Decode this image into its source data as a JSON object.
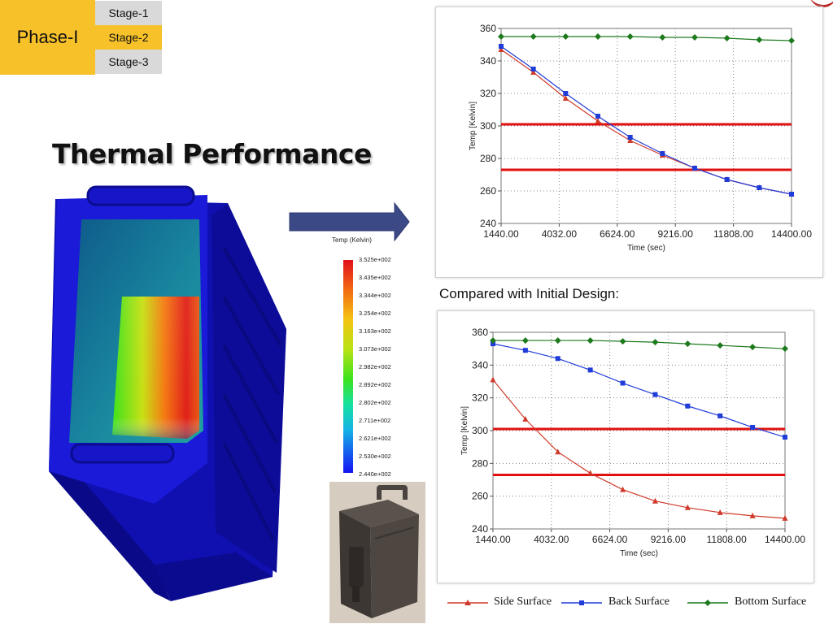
{
  "header": {
    "phase_label": "Phase-I",
    "stages": [
      "Stage-1",
      "Stage-2",
      "Stage-3"
    ],
    "active_stage": "Stage-2"
  },
  "title": "Thermal Performance",
  "colors": {
    "accent_yellow": "#f7c12a",
    "stage_gray": "#d9d9d9",
    "side_surface": "#d03a2a",
    "back_surface": "#1f3cd8",
    "bottom_surface": "#1d7a1d",
    "limit_lines": "#e01010",
    "model_blue": "#1a1ad8"
  },
  "compared_text": "Compared with Initial Design:",
  "colorbar": {
    "title": "Temp (Kelvin)",
    "ticks": [
      "3.525e+002",
      "3.435e+002",
      "3.344e+002",
      "3.254e+002",
      "3.163e+002",
      "3.073e+002",
      "2.982e+002",
      "2.892e+002",
      "2.802e+002",
      "2.711e+002",
      "2.621e+002",
      "2.530e+002",
      "2.440e+002"
    ]
  },
  "legend": {
    "side": "Side Surface",
    "back": "Back Surface",
    "bottom": "Bottom Surface"
  },
  "chart_data": [
    {
      "type": "line",
      "title": "",
      "xlabel": "Time (sec)",
      "ylabel": "Temp [Kelvin]",
      "xlim": [
        1440,
        14400
      ],
      "ylim": [
        240,
        360
      ],
      "x_ticks": [
        1440,
        4032,
        6624,
        9216,
        11808,
        14400
      ],
      "x_tick_labels": [
        "1440.00",
        "4032.00",
        "6624.00",
        "9216.00",
        "11808.00",
        "14400.00"
      ],
      "y_ticks": [
        240,
        260,
        280,
        300,
        320,
        340,
        360
      ],
      "grid": "dotted",
      "x": [
        1440,
        2880,
        4320,
        5760,
        7200,
        8640,
        10080,
        11520,
        12960,
        14400
      ],
      "series": [
        {
          "name": "Side Surface",
          "color": "#d03a2a",
          "marker": "triangle",
          "values": [
            347,
            333,
            317,
            303,
            291,
            282,
            274,
            267,
            262,
            258
          ]
        },
        {
          "name": "Back Surface",
          "color": "#1f3cd8",
          "marker": "square",
          "values": [
            349,
            335,
            320,
            306,
            293,
            283,
            274,
            267,
            262,
            258
          ]
        },
        {
          "name": "Bottom Surface",
          "color": "#1d7a1d",
          "marker": "diamond",
          "values": [
            355,
            355,
            355,
            355,
            355,
            354.5,
            354.5,
            354,
            353,
            352.5
          ]
        }
      ],
      "reference_lines": [
        301,
        273
      ]
    },
    {
      "type": "line",
      "title": "",
      "xlabel": "Time (sec)",
      "ylabel": "Temp [Kelvin]",
      "xlim": [
        1440,
        14400
      ],
      "ylim": [
        240,
        360
      ],
      "x_ticks": [
        1440,
        4032,
        6624,
        9216,
        11808,
        14400
      ],
      "x_tick_labels": [
        "1440.00",
        "4032.00",
        "6624.00",
        "9216.00",
        "11808.00",
        "14400.00"
      ],
      "y_ticks": [
        240,
        260,
        280,
        300,
        320,
        340,
        360
      ],
      "grid": "dotted",
      "x": [
        1440,
        2880,
        4320,
        5760,
        7200,
        8640,
        10080,
        11520,
        12960,
        14400
      ],
      "series": [
        {
          "name": "Side Surface",
          "color": "#d03a2a",
          "marker": "triangle",
          "values": [
            331,
            307,
            287,
            274,
            264,
            257,
            253,
            250,
            248,
            246.5
          ]
        },
        {
          "name": "Back Surface",
          "color": "#1f3cd8",
          "marker": "square",
          "values": [
            353,
            349,
            344,
            337,
            329,
            322,
            315,
            309,
            302,
            296
          ]
        },
        {
          "name": "Bottom Surface",
          "color": "#1d7a1d",
          "marker": "diamond",
          "values": [
            355,
            355,
            355,
            355,
            354.5,
            354,
            353,
            352,
            351,
            350
          ]
        }
      ],
      "reference_lines": [
        301,
        273
      ]
    }
  ]
}
